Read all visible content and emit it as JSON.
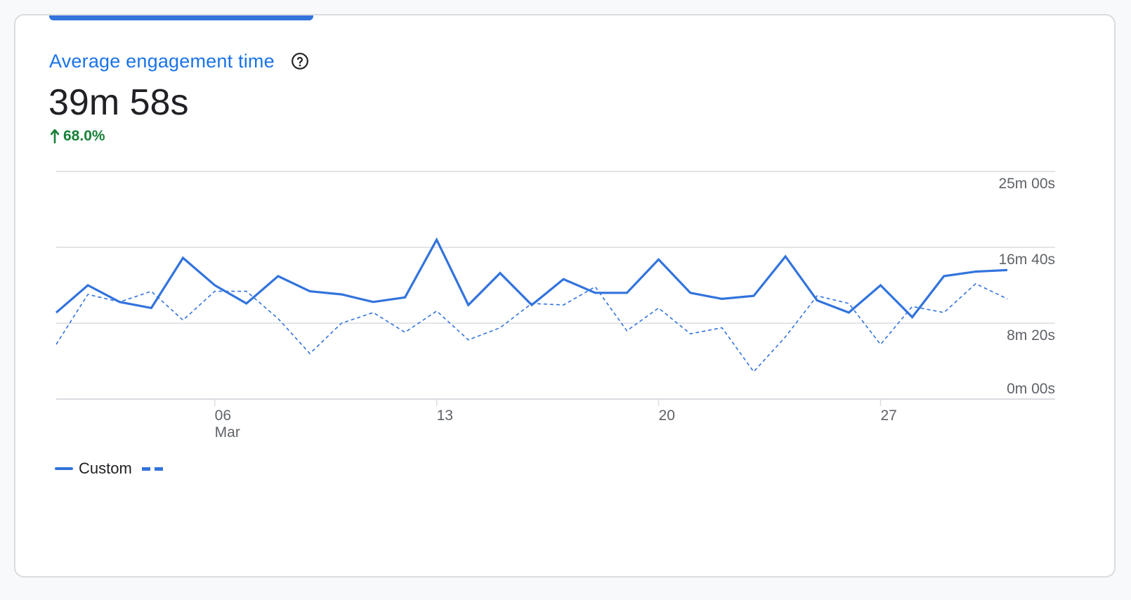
{
  "card": {
    "metric_title": "Average engagement time",
    "metric_value": "39m 58s",
    "metric_change": "68.0%",
    "change_color": "#188038",
    "help_icon": "help-circle-icon",
    "change_icon": "arrow-up-icon"
  },
  "legend": {
    "primary_label": "Custom",
    "secondary_label": ""
  },
  "colors": {
    "series": "#3273dc",
    "grid": "#dadce0",
    "title": "#1a73e8"
  },
  "chart_data": {
    "type": "line",
    "title": "",
    "xlabel": "",
    "ylabel": "",
    "x_tick_labels": [
      {
        "label": "06",
        "sublabel": "Mar",
        "index": 5
      },
      {
        "label": "13",
        "sublabel": "",
        "index": 12
      },
      {
        "label": "20",
        "sublabel": "",
        "index": 19
      },
      {
        "label": "27",
        "sublabel": "",
        "index": 26
      }
    ],
    "y_tick_labels": [
      "0m 00s",
      "8m 20s",
      "16m 40s",
      "25m 00s"
    ],
    "y_tick_values": [
      0,
      500,
      1000,
      1500
    ],
    "ylim": [
      0,
      1500
    ],
    "y_unit": "seconds",
    "days": 31,
    "grid": true,
    "legend_position": "bottom-left",
    "series": [
      {
        "name": "Custom",
        "style": "solid",
        "values": [
          570,
          750,
          640,
          600,
          930,
          750,
          630,
          810,
          710,
          690,
          640,
          670,
          1050,
          620,
          830,
          620,
          790,
          700,
          700,
          920,
          700,
          660,
          680,
          940,
          650,
          570,
          750,
          540,
          810,
          840,
          850
        ]
      },
      {
        "style": "dashed",
        "values": [
          360,
          690,
          640,
          710,
          520,
          710,
          710,
          530,
          300,
          500,
          570,
          440,
          580,
          390,
          470,
          630,
          620,
          740,
          450,
          600,
          430,
          470,
          180,
          410,
          680,
          630,
          360,
          610,
          570,
          760,
          660
        ]
      }
    ]
  }
}
